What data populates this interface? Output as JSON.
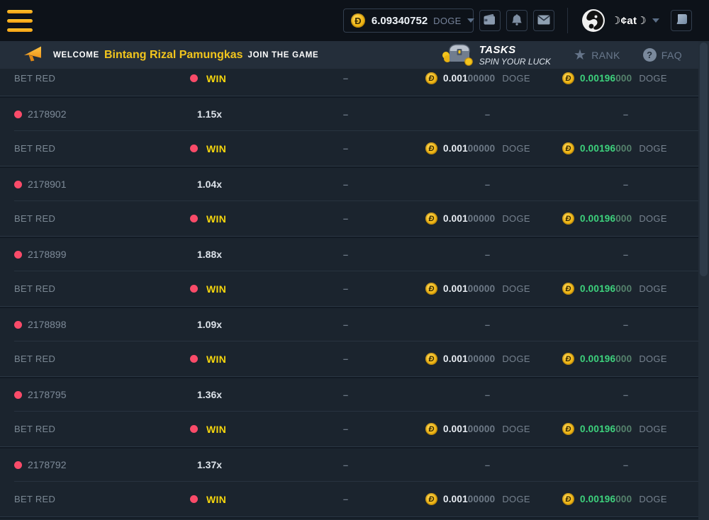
{
  "topbar": {
    "balance": {
      "coin_symbol": "Đ",
      "amount": "6.09340752",
      "currency": "DOGE"
    },
    "username": "☽¢at☽",
    "icons": {
      "menu": "hamburger-icon",
      "wallet": "wallet-icon",
      "notifications": "bell-icon",
      "messages": "mail-icon",
      "currency_dropdown": "chevron-down-icon",
      "user_dropdown": "chevron-down-icon",
      "chat": "chat-icon",
      "coin": "doge-coin-icon"
    }
  },
  "announcement": {
    "megaphone": "megaphone-icon",
    "welcome_prefix": "WELCOME",
    "player_name": "Bintang Rizal Pamungkas",
    "welcome_suffix": "JOIN THE GAME",
    "tasks": {
      "icon": "treasure-chest-icon",
      "title": "TASKS",
      "subtitle": "SPIN YOUR LUCK"
    },
    "rank": {
      "icon": "star-icon",
      "label": "RANK"
    },
    "faq": {
      "icon": "question-icon",
      "label": "FAQ"
    }
  },
  "table": {
    "coin_symbol": "Đ",
    "dash": "–",
    "rows": [
      {
        "type": "bet",
        "label": "BET RED",
        "result": "WIN",
        "bet": {
          "bold": "0.001",
          "dim": "00000",
          "unit": "DOGE"
        },
        "profit": {
          "bold": "0.00196",
          "dim": "000",
          "unit": "DOGE"
        }
      },
      {
        "type": "game",
        "id": "2178902",
        "multiplier": "1.15x"
      },
      {
        "type": "bet",
        "label": "BET RED",
        "result": "WIN",
        "bet": {
          "bold": "0.001",
          "dim": "00000",
          "unit": "DOGE"
        },
        "profit": {
          "bold": "0.00196",
          "dim": "000",
          "unit": "DOGE"
        }
      },
      {
        "type": "game",
        "id": "2178901",
        "multiplier": "1.04x"
      },
      {
        "type": "bet",
        "label": "BET RED",
        "result": "WIN",
        "bet": {
          "bold": "0.001",
          "dim": "00000",
          "unit": "DOGE"
        },
        "profit": {
          "bold": "0.00196",
          "dim": "000",
          "unit": "DOGE"
        }
      },
      {
        "type": "game",
        "id": "2178899",
        "multiplier": "1.88x"
      },
      {
        "type": "bet",
        "label": "BET RED",
        "result": "WIN",
        "bet": {
          "bold": "0.001",
          "dim": "00000",
          "unit": "DOGE"
        },
        "profit": {
          "bold": "0.00196",
          "dim": "000",
          "unit": "DOGE"
        }
      },
      {
        "type": "game",
        "id": "2178898",
        "multiplier": "1.09x"
      },
      {
        "type": "bet",
        "label": "BET RED",
        "result": "WIN",
        "bet": {
          "bold": "0.001",
          "dim": "00000",
          "unit": "DOGE"
        },
        "profit": {
          "bold": "0.00196",
          "dim": "000",
          "unit": "DOGE"
        }
      },
      {
        "type": "game",
        "id": "2178795",
        "multiplier": "1.36x"
      },
      {
        "type": "bet",
        "label": "BET RED",
        "result": "WIN",
        "bet": {
          "bold": "0.001",
          "dim": "00000",
          "unit": "DOGE"
        },
        "profit": {
          "bold": "0.00196",
          "dim": "000",
          "unit": "DOGE"
        }
      },
      {
        "type": "game",
        "id": "2178792",
        "multiplier": "1.37x"
      },
      {
        "type": "bet",
        "label": "BET RED",
        "result": "WIN",
        "bet": {
          "bold": "0.001",
          "dim": "00000",
          "unit": "DOGE"
        },
        "profit": {
          "bold": "0.00196",
          "dim": "000",
          "unit": "DOGE"
        }
      }
    ]
  },
  "colors": {
    "accent_yellow": "#f2c51d",
    "win_yellow": "#f6d60d",
    "red_dot": "#fa4b69",
    "profit_green": "#3dd37d",
    "doge_gold": "#eeb515",
    "row_bg": "#1b242e",
    "topbar_bg": "#0d1219",
    "announce_bg": "#242e3a"
  }
}
